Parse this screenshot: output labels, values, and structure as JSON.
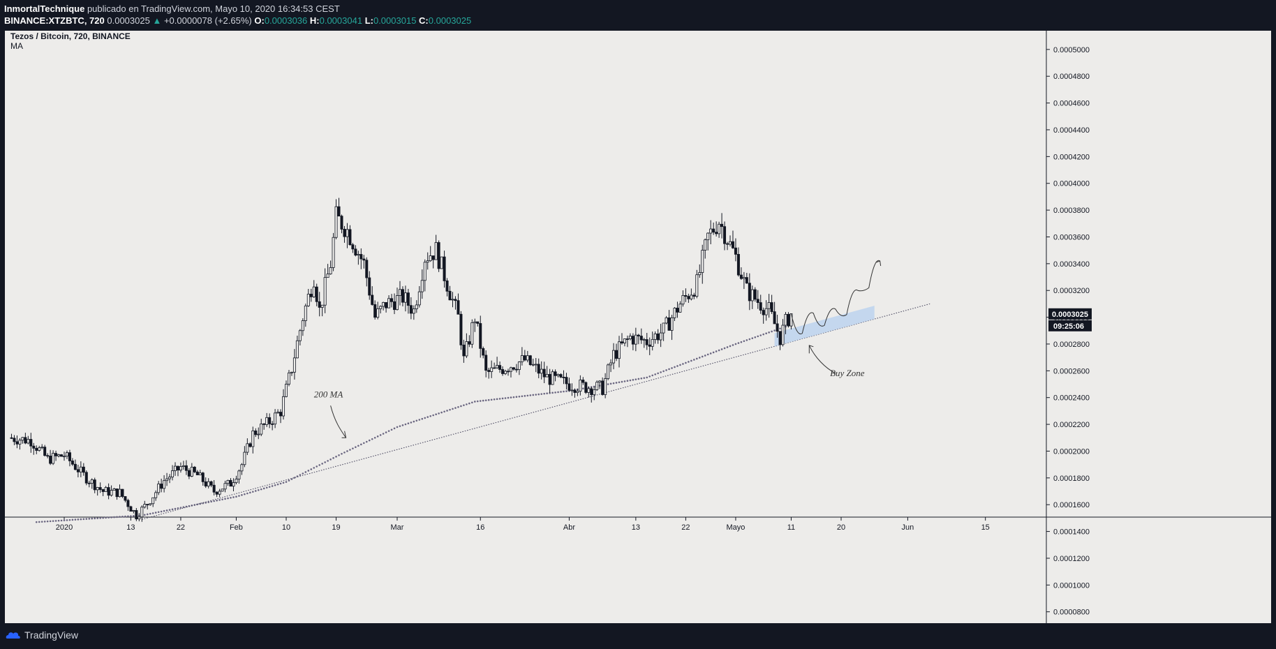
{
  "header": {
    "author": "InmortalTechnique",
    "published_text": " publicado en TradingView.com, Mayo 10, 2020 16:34:53 CEST",
    "symbol": "BINANCE:XTZBTC, 720",
    "last": "0.0003025",
    "change": "+0.0000078 (+2.65%)",
    "o_label": "O:",
    "o_value": "0.0003036",
    "h_label": "H:",
    "h_value": "0.0003041",
    "l_label": "L:",
    "l_value": "0.0003015",
    "c_label": "C:",
    "c_value": "0.0003025"
  },
  "chart_legend": {
    "title": "Tezos / Bitcoin, 720, BINANCE",
    "indicator": "MA"
  },
  "footer": {
    "brand": "TradingView"
  },
  "colors": {
    "up": "#26a69a",
    "candle": "#131722",
    "zone": "#bcd3ee",
    "ma": "#6a6680",
    "background": "#edecea"
  },
  "chart_data": {
    "type": "candlestick",
    "title": "Tezos / Bitcoin, 720, BINANCE",
    "ylim": [
      7e-05,
      0.00051
    ],
    "y_ticks": [
      "0.0005000",
      "0.0004800",
      "0.0004600",
      "0.0004400",
      "0.0004200",
      "0.0004000",
      "0.0003800",
      "0.0003600",
      "0.0003400",
      "0.0003200",
      "0.0003000",
      "0.0002800",
      "0.0002600",
      "0.0002400",
      "0.0002200",
      "0.0002000",
      "0.0001800",
      "0.0001600",
      "0.0001400",
      "0.0001200",
      "0.0001000",
      "0.0000800"
    ],
    "x_ticks": [
      {
        "label": "2020",
        "date": "2020-01-01"
      },
      {
        "label": "13",
        "date": "2020-01-13"
      },
      {
        "label": "22",
        "date": "2020-01-22"
      },
      {
        "label": "Feb",
        "date": "2020-02-01"
      },
      {
        "label": "10",
        "date": "2020-02-10"
      },
      {
        "label": "19",
        "date": "2020-02-19"
      },
      {
        "label": "Mar",
        "date": "2020-03-01"
      },
      {
        "label": "16",
        "date": "2020-03-16"
      },
      {
        "label": "Abr",
        "date": "2020-04-01"
      },
      {
        "label": "13",
        "date": "2020-04-13"
      },
      {
        "label": "22",
        "date": "2020-04-22"
      },
      {
        "label": "Mayo",
        "date": "2020-05-01"
      },
      {
        "label": "11",
        "date": "2020-05-11"
      },
      {
        "label": "20",
        "date": "2020-05-20"
      },
      {
        "label": "Jun",
        "date": "2020-06-01"
      },
      {
        "label": "15",
        "date": "2020-06-15"
      }
    ],
    "price_path": [
      {
        "date": "2019-12-22",
        "close": 0.00021
      },
      {
        "date": "2019-12-26",
        "close": 0.000208
      },
      {
        "date": "2019-12-29",
        "close": 0.000194
      },
      {
        "date": "2020-01-01",
        "close": 0.000197
      },
      {
        "date": "2020-01-05",
        "close": 0.00018
      },
      {
        "date": "2020-01-08",
        "close": 0.00017
      },
      {
        "date": "2020-01-11",
        "close": 0.000169
      },
      {
        "date": "2020-01-14",
        "close": 0.000152
      },
      {
        "date": "2020-01-16",
        "close": 0.000161
      },
      {
        "date": "2020-01-19",
        "close": 0.000178
      },
      {
        "date": "2020-01-22",
        "close": 0.000188
      },
      {
        "date": "2020-01-25",
        "close": 0.000182
      },
      {
        "date": "2020-01-28",
        "close": 0.00017
      },
      {
        "date": "2020-01-31",
        "close": 0.000176
      },
      {
        "date": "2020-02-02",
        "close": 0.00019
      },
      {
        "date": "2020-02-04",
        "close": 0.000213
      },
      {
        "date": "2020-02-07",
        "close": 0.000222
      },
      {
        "date": "2020-02-09",
        "close": 0.00023
      },
      {
        "date": "2020-02-11",
        "close": 0.000262
      },
      {
        "date": "2020-02-13",
        "close": 0.0003
      },
      {
        "date": "2020-02-15",
        "close": 0.00033
      },
      {
        "date": "2020-02-16",
        "close": 0.000305
      },
      {
        "date": "2020-02-18",
        "close": 0.00034
      },
      {
        "date": "2020-02-19",
        "close": 0.000375
      },
      {
        "date": "2020-02-21",
        "close": 0.000365
      },
      {
        "date": "2020-02-24",
        "close": 0.00034
      },
      {
        "date": "2020-02-26",
        "close": 0.0003
      },
      {
        "date": "2020-02-28",
        "close": 0.00031
      },
      {
        "date": "2020-03-02",
        "close": 0.000315
      },
      {
        "date": "2020-03-04",
        "close": 0.000305
      },
      {
        "date": "2020-03-06",
        "close": 0.000345
      },
      {
        "date": "2020-03-08",
        "close": 0.00035
      },
      {
        "date": "2020-03-10",
        "close": 0.000325
      },
      {
        "date": "2020-03-12",
        "close": 0.0003
      },
      {
        "date": "2020-03-13",
        "close": 0.000268
      },
      {
        "date": "2020-03-15",
        "close": 0.0003
      },
      {
        "date": "2020-03-17",
        "close": 0.000258
      },
      {
        "date": "2020-03-20",
        "close": 0.000262
      },
      {
        "date": "2020-03-24",
        "close": 0.000268
      },
      {
        "date": "2020-03-28",
        "close": 0.000255
      },
      {
        "date": "2020-04-01",
        "close": 0.00025
      },
      {
        "date": "2020-04-04",
        "close": 0.000248
      },
      {
        "date": "2020-04-07",
        "close": 0.000247
      },
      {
        "date": "2020-04-09",
        "close": 0.000272
      },
      {
        "date": "2020-04-12",
        "close": 0.000285
      },
      {
        "date": "2020-04-15",
        "close": 0.000282
      },
      {
        "date": "2020-04-18",
        "close": 0.00029
      },
      {
        "date": "2020-04-21",
        "close": 0.00031
      },
      {
        "date": "2020-04-24",
        "close": 0.000325
      },
      {
        "date": "2020-04-26",
        "close": 0.00036
      },
      {
        "date": "2020-04-28",
        "close": 0.000372
      },
      {
        "date": "2020-05-01",
        "close": 0.000345
      },
      {
        "date": "2020-05-03",
        "close": 0.00032
      },
      {
        "date": "2020-05-05",
        "close": 0.000312
      },
      {
        "date": "2020-05-07",
        "close": 0.000305
      },
      {
        "date": "2020-05-09",
        "close": 0.000285
      },
      {
        "date": "2020-05-10",
        "close": 0.000296
      },
      {
        "date": "2020-05-11",
        "close": 0.0003025
      }
    ],
    "ma_200": [
      {
        "date": "2019-12-27",
        "value": 0.000147
      },
      {
        "date": "2020-01-15",
        "value": 0.000152
      },
      {
        "date": "2020-02-01",
        "value": 0.000166
      },
      {
        "date": "2020-02-10",
        "value": 0.000177
      },
      {
        "date": "2020-02-20",
        "value": 0.000198
      },
      {
        "date": "2020-03-01",
        "value": 0.000218
      },
      {
        "date": "2020-03-15",
        "value": 0.000237
      },
      {
        "date": "2020-04-01",
        "value": 0.000245
      },
      {
        "date": "2020-04-15",
        "value": 0.000255
      },
      {
        "date": "2020-05-01",
        "value": 0.00028
      },
      {
        "date": "2020-05-10",
        "value": 0.000293
      }
    ],
    "trendline": {
      "start": {
        "date": "2020-01-15",
        "value": 0.000149
      },
      "end": {
        "date": "2020-06-05",
        "value": 0.00031
      }
    },
    "last_price_label": "0.0003025",
    "countdown_label": "09:25:06",
    "annotations": {
      "ma_label": "200 MA",
      "zone_label": "Buy Zone"
    }
  }
}
